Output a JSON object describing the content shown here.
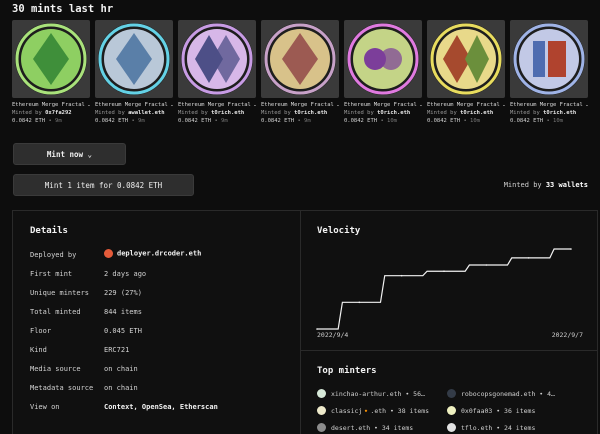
{
  "header": {
    "title": "30 mints last hr"
  },
  "nfts": [
    {
      "name": "Ethereum Merge Fractal …",
      "minted_by": "0x7fa292",
      "price": "0.0842 ETH",
      "age": "• 9m",
      "ring": "#a9e27b",
      "fill": "#8ecf62",
      "diamond": "#3f8f3a"
    },
    {
      "name": "Ethereum Merge Fractal …",
      "minted_by": "awallet.eth",
      "price": "0.0842 ETH",
      "age": "• 9m",
      "ring": "#64d2e6",
      "fill": "#b9c8d8",
      "diamond": "#5a7fa8"
    },
    {
      "name": "Ethereum Merge Fractal …",
      "minted_by": "t0rich.eth",
      "price": "0.0842 ETH",
      "age": "• 9m",
      "ring": "#c79be4",
      "fill": "#d7b7e8",
      "diamond": "#4d4f87"
    },
    {
      "name": "Ethereum Merge Fractal …",
      "minted_by": "t0rich.eth",
      "price": "0.0842 ETH",
      "age": "• 9m",
      "ring": "#c7a1c8",
      "fill": "#d8c28a",
      "diamond": "#9c5a52"
    },
    {
      "name": "Ethereum Merge Fractal …",
      "minted_by": "t0rich.eth",
      "price": "0.0842 ETH",
      "age": "• 10m",
      "ring": "#e07ae0",
      "fill": "#c4d487",
      "diamond": "#7c3e9a"
    },
    {
      "name": "Ethereum Merge Fractal …",
      "minted_by": "t0rich.eth",
      "price": "0.0842 ETH",
      "age": "• 10m",
      "ring": "#e8dc5e",
      "fill": "#e8d98a",
      "diamond": "#a64a2e"
    },
    {
      "name": "Ethereum Merge Fractal …",
      "minted_by": "t0rich.eth",
      "price": "0.0842 ETH",
      "age": "• 10m",
      "ring": "#9fb3e6",
      "fill": "#c2c9e6",
      "diamond": "#4e6cb0"
    }
  ],
  "minted_prefix": "Minted by",
  "actions": {
    "mint_now": "Mint now ⌄",
    "mint_buy": "Mint 1 item for 0.0842 ETH"
  },
  "wallets": {
    "prefix": "Minted by",
    "count": "33 wallets"
  },
  "details": {
    "title": "Details",
    "rows": [
      {
        "label": "Deployed by",
        "value": "deployer.drcoder.eth"
      },
      {
        "label": "First mint",
        "value": "2 days ago"
      },
      {
        "label": "Unique minters",
        "value": "229 (27%)"
      },
      {
        "label": "Total minted",
        "value": "844 items"
      },
      {
        "label": "Floor",
        "value": "0.045 ETH"
      },
      {
        "label": "Kind",
        "value": "ERC721"
      },
      {
        "label": "Media source",
        "value": "on chain"
      },
      {
        "label": "Metadata source",
        "value": "on chain"
      },
      {
        "label": "View on",
        "value": "Context, OpenSea, Etherscan"
      }
    ]
  },
  "velocity": {
    "title": "Velocity",
    "chart_data": {
      "type": "line",
      "x": [
        "2022/9/4",
        "2022/9/5",
        "2022/9/5",
        "2022/9/6",
        "2022/9/6",
        "2022/9/7",
        "2022/9/7"
      ],
      "values": [
        0,
        30,
        60,
        65,
        72,
        80,
        90
      ],
      "tick_labels": [
        "2022/9/4",
        "2022/9/7"
      ]
    }
  },
  "top_minters": {
    "title": "Top minters",
    "items": [
      {
        "name": "xinchao-arthur.eth • 56…",
        "color": "#d6e8d8"
      },
      {
        "name": "robocopsgonemad.eth • 4…",
        "color": "#333b47"
      },
      {
        "name": "classicj🔸.eth • 38 items",
        "color": "#eeeacb"
      },
      {
        "name": "0x0faa03 • 36 items",
        "color": "#eef0c0"
      },
      {
        "name": "desert.eth • 34 items",
        "color": "#8c8c8c"
      },
      {
        "name": "tflo.eth • 24 items",
        "color": "#e2e2e2"
      }
    ]
  }
}
